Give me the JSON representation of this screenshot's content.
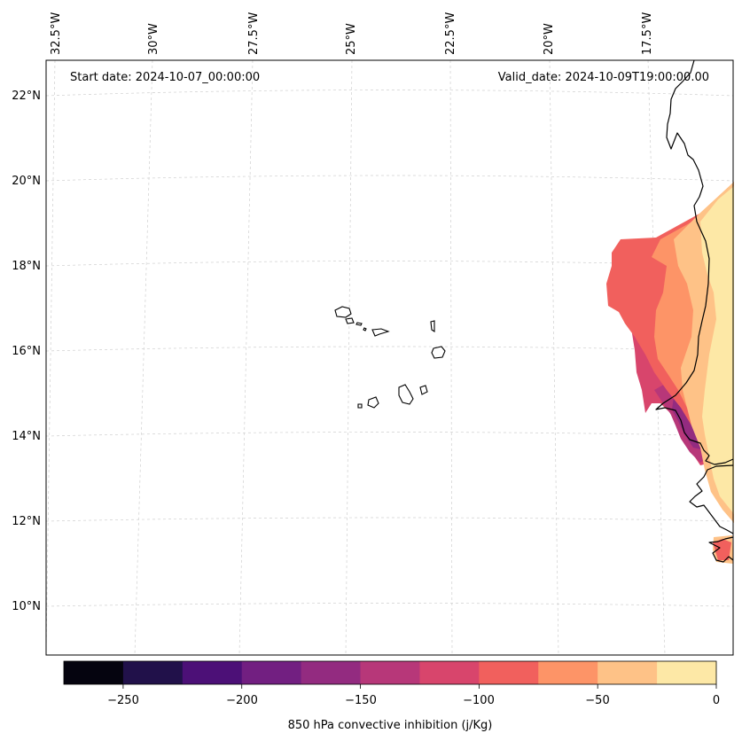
{
  "map": {
    "start_label": "Start date: 2024-10-07_00:00:00",
    "valid_label": "Valid_date: 2024-10-09T19:00:00.00",
    "lon_labels": [
      "32.5°W",
      "30°W",
      "27.5°W",
      "25°W",
      "22.5°W",
      "20°W",
      "17.5°W"
    ],
    "lat_labels": [
      "22°N",
      "20°N",
      "18°N",
      "16°N",
      "14°N",
      "12°N",
      "10°N"
    ]
  },
  "colorbar": {
    "title": "850 hPa convective inhibition (j/Kg)",
    "tick_labels": [
      "−250",
      "−200",
      "−150",
      "−100",
      "−50",
      "0"
    ],
    "levels": [
      -275,
      -250,
      -225,
      -200,
      -175,
      -150,
      -125,
      -100,
      -75,
      -50,
      -25,
      0
    ],
    "colors": [
      "#05040f",
      "#21114a",
      "#4c1077",
      "#721f81",
      "#932b80",
      "#b73779",
      "#d8456c",
      "#f1605d",
      "#fd9467",
      "#fec287",
      "#fde8a6"
    ]
  },
  "colors": {
    "background": "#ffffff",
    "grid": "#cfcfcf",
    "coastline": "#000000"
  }
}
